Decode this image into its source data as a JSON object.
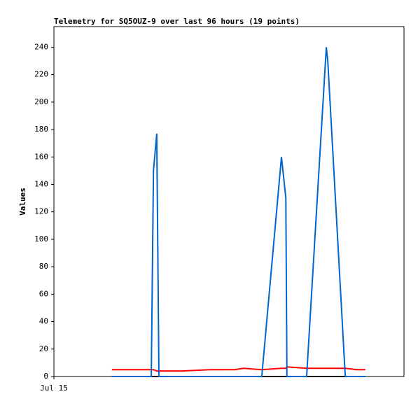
{
  "chart_data": {
    "type": "line",
    "title": "Telemetry for SQ5OUZ-9 over last 96 hours (19 points)",
    "y_label": "Values",
    "x": [
      15.9,
      26.7,
      27.3,
      28.2,
      28.8,
      35.1,
      42.8,
      49.5,
      52.0,
      57.0,
      62.4,
      63.6,
      63.9,
      69.3,
      74.7,
      75.1,
      79.9,
      83.1,
      85.4
    ],
    "xlim": [
      0,
      96
    ],
    "xticks": [
      {
        "value": 0,
        "label": "Jul 15"
      }
    ],
    "ylim": [
      0,
      255
    ],
    "yticks": [
      0,
      20,
      40,
      60,
      80,
      100,
      120,
      140,
      160,
      180,
      200,
      220,
      240
    ],
    "series": [
      {
        "color": "#000000",
        "values": [
          0,
          0,
          0,
          0,
          0,
          0,
          0,
          0,
          0,
          0,
          0,
          0,
          0,
          0,
          0,
          0,
          0,
          0,
          0
        ]
      },
      {
        "color": "#ff0000",
        "values": [
          5,
          5,
          5,
          4,
          4,
          4,
          5,
          5,
          6,
          5,
          6,
          6,
          7,
          6,
          6,
          6,
          6,
          5,
          5
        ]
      },
      {
        "color": "#0066cc",
        "values": [
          0,
          0,
          150,
          177,
          0,
          0,
          0,
          0,
          0,
          0,
          160,
          130,
          0,
          0,
          240,
          230,
          0,
          0,
          0
        ]
      }
    ]
  }
}
